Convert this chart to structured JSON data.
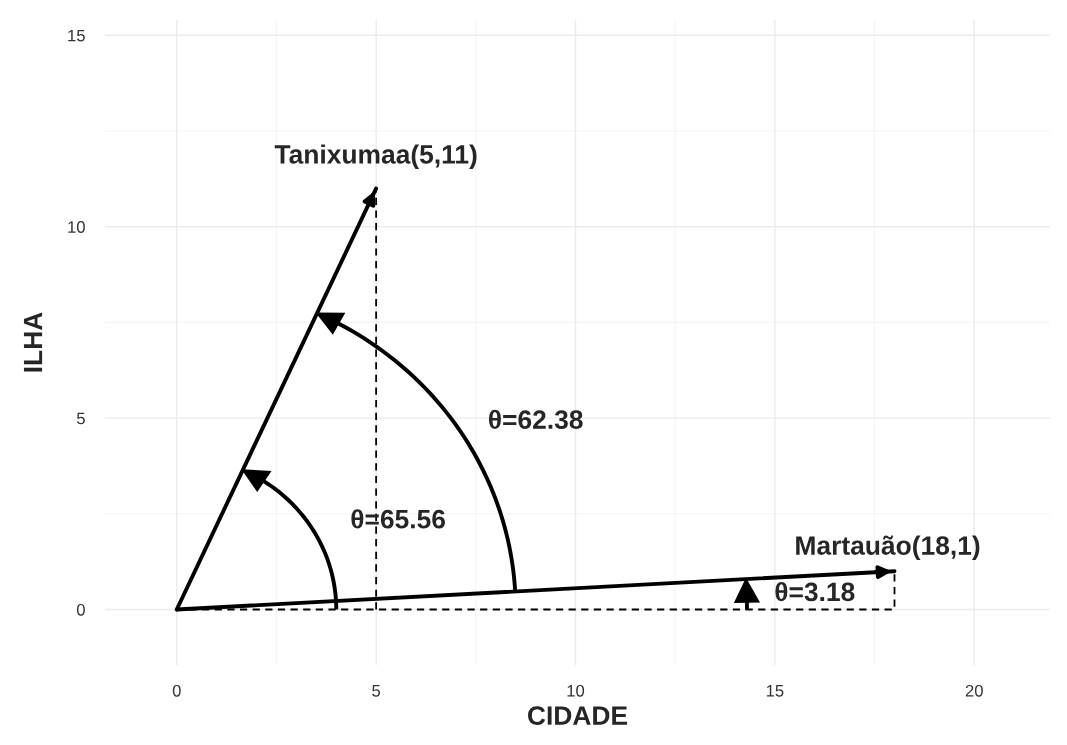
{
  "chart_data": {
    "type": "line",
    "xlabel": "CIDADE",
    "ylabel": "ILHA",
    "xlim": [
      -1.8,
      21.9
    ],
    "ylim": [
      -1.45,
      15.4
    ],
    "xticks": [
      0,
      5,
      10,
      15,
      20
    ],
    "yticks": [
      0,
      5,
      10,
      15
    ],
    "grid": true,
    "legend": false,
    "marker": "none",
    "series": [
      {
        "color": "#000000",
        "x": [
          0,
          5
        ],
        "values": [
          0,
          11
        ],
        "line_style": "solid"
      },
      {
        "color": "#000000",
        "x": [
          0,
          18
        ],
        "values": [
          0,
          1
        ],
        "line_style": "solid"
      },
      {
        "color": "#000000",
        "x": [
          5,
          5
        ],
        "values": [
          0,
          11
        ],
        "line_style": "dashed"
      },
      {
        "color": "#000000",
        "x": [
          0,
          18,
          18
        ],
        "values": [
          0,
          0,
          1
        ],
        "line_style": "dashed"
      }
    ],
    "annotations": [
      {
        "text": "Tanixumaa(5,11)",
        "x": 5,
        "y": 11
      },
      {
        "text": "Martauão(18,1)",
        "x": 18,
        "y": 1
      },
      "θ=62.38",
      "θ=65.56",
      "θ=3.18"
    ]
  }
}
